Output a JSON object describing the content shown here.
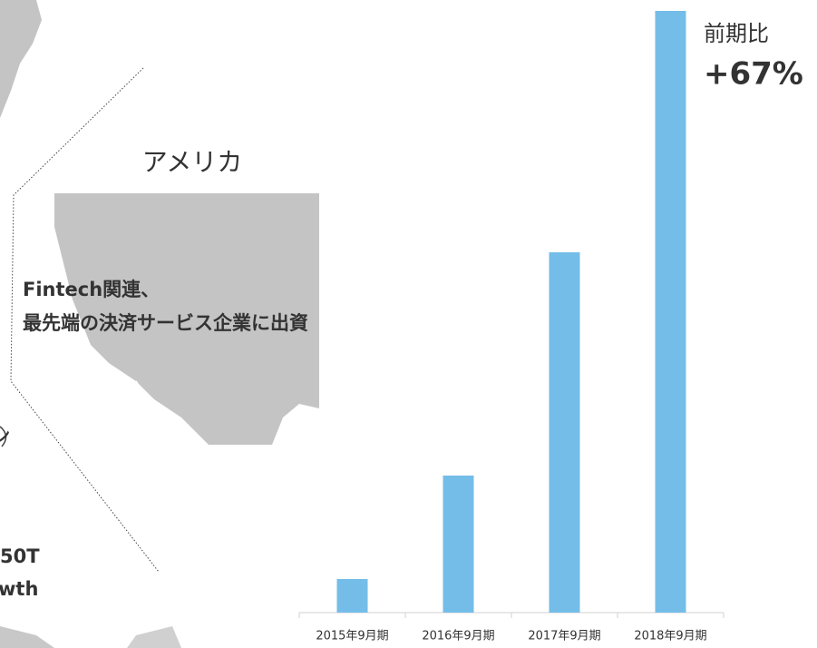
{
  "chart_data": {
    "type": "bar",
    "categories": [
      "2015年9月期",
      "2016年9月期",
      "2017年9月期",
      "2018年9月期"
    ],
    "values": [
      37,
      151,
      397,
      663
    ],
    "color": "#74bde8",
    "ylim": [
      0,
      700
    ],
    "annotations": [
      "前期比",
      "+67%"
    ]
  },
  "map_labels": {
    "region": "アメリカ",
    "note": [
      "Fintech関連、",
      "最先端の決済サービス企業に出資"
    ],
    "partial": [
      "ン",
      "50T",
      "wth"
    ]
  }
}
